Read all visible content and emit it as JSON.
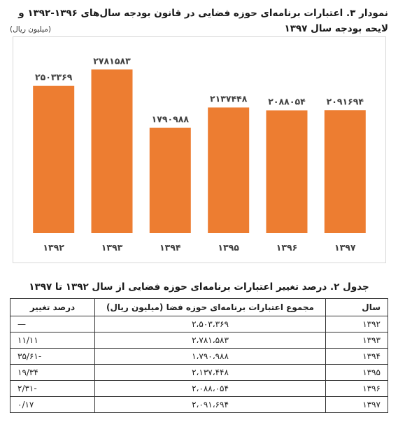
{
  "chart_title": "نمودار ۳. اعتبارات برنامه‌ای حوزه فضایی در قانون بودجه سال‌های ۱۳۹۶-۱۳۹۲ و لایحه بودجه سال ۱۳۹۷",
  "chart_unit": "(میلیون ریال)",
  "chart_data": {
    "type": "bar",
    "categories": [
      "۱۳۹۲",
      "۱۳۹۳",
      "۱۳۹۴",
      "۱۳۹۵",
      "۱۳۹۶",
      "۱۳۹۷"
    ],
    "values": [
      2503369,
      2781583,
      1790988,
      2137448,
      2088054,
      2091694
    ],
    "value_labels": [
      "۲۵۰۳۳۶۹",
      "۲۷۸۱۵۸۳",
      "۱۷۹۰۹۸۸",
      "۲۱۳۷۴۴۸",
      "۲۰۸۸۰۵۴",
      "۲۰۹۱۶۹۴"
    ],
    "bar_color": "#ED7D31",
    "label_color": "#404040",
    "ylim": [
      0,
      3000000
    ],
    "grid": false,
    "legend": "none"
  },
  "table": {
    "title": "جدول ۲. درصد تغییر اعتبارات برنامه‌ای حوزه فضایی از سال ۱۳۹۲ تا ۱۳۹۷",
    "headers": [
      "سال",
      "مجموع اعتبارات برنامه‌ای حوزه فضا (میلیون ریال)",
      "درصد تغییر"
    ],
    "rows": [
      [
        "۱۳۹۲",
        "۲،۵۰۳،۳۶۹",
        "—"
      ],
      [
        "۱۳۹۳",
        "۲،۷۸۱،۵۸۳",
        "۱۱/۱۱"
      ],
      [
        "۱۳۹۴",
        "۱،۷۹۰،۹۸۸",
        "-۳۵/۶۱"
      ],
      [
        "۱۳۹۵",
        "۲،۱۳۷،۴۴۸",
        "۱۹/۳۴"
      ],
      [
        "۱۳۹۶",
        "۲،۰۸۸،۰۵۴",
        "-۲/۳۱"
      ],
      [
        "۱۳۹۷",
        "۲،۰۹۱،۶۹۴",
        "۰/۱۷"
      ]
    ]
  }
}
